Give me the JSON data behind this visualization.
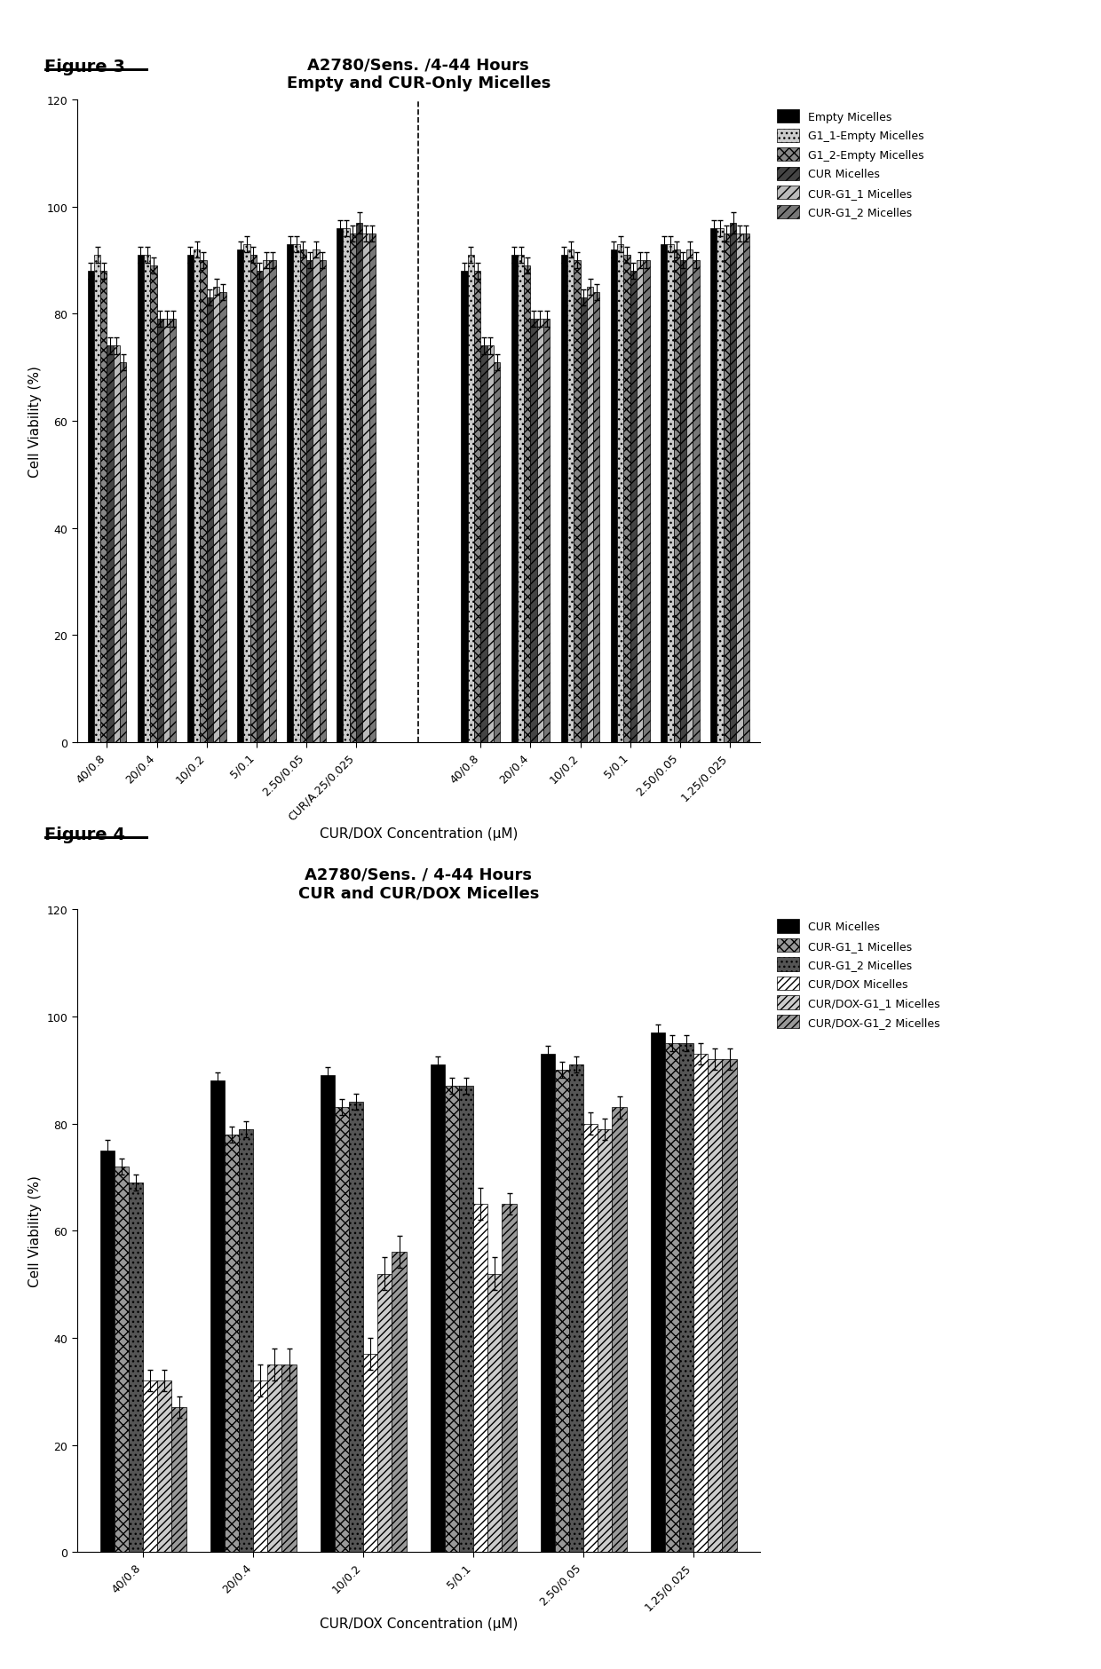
{
  "fig3": {
    "title_line1": "A2780/Sens. /4-44 Hours",
    "title_line2": "Empty and CUR-Only Micelles",
    "xlabel": "CUR/DOX Concentration (μM)",
    "ylabel": "Cell Viability (%)",
    "ylim": [
      0,
      120
    ],
    "yticks": [
      0,
      20,
      40,
      60,
      80,
      100,
      120
    ],
    "xtick_labels_left": [
      "40/0.8",
      "20/0.4",
      "10/0.2",
      "5/0.1",
      "2.50/0.05",
      "CUR/A.25/0.025"
    ],
    "xtick_labels_right": [
      "40/0.8",
      "20/0.4",
      "10/0.2",
      "5/0.1",
      "2.50/0.05",
      "1.25/0.025"
    ],
    "series": {
      "Empty Micelles": [
        88,
        91,
        91,
        92,
        93,
        96
      ],
      "G1_1-Empty Micelles": [
        91,
        91,
        92,
        93,
        93,
        96
      ],
      "G1_2-Empty Micelles": [
        88,
        89,
        90,
        91,
        92,
        95
      ],
      "CUR Micelles": [
        74,
        79,
        83,
        88,
        90,
        97
      ],
      "CUR-G1_1 Micelles": [
        74,
        79,
        85,
        90,
        92,
        95
      ],
      "CUR-G1_2 Micelles": [
        71,
        79,
        84,
        90,
        90,
        95
      ]
    },
    "errors": {
      "Empty Micelles": [
        1.5,
        1.5,
        1.5,
        1.5,
        1.5,
        1.5
      ],
      "G1_1-Empty Micelles": [
        1.5,
        1.5,
        1.5,
        1.5,
        1.5,
        1.5
      ],
      "G1_2-Empty Micelles": [
        1.5,
        1.5,
        1.5,
        1.5,
        1.5,
        1.5
      ],
      "CUR Micelles": [
        1.5,
        1.5,
        1.5,
        1.5,
        1.5,
        2.0
      ],
      "CUR-G1_1 Micelles": [
        1.5,
        1.5,
        1.5,
        1.5,
        1.5,
        1.5
      ],
      "CUR-G1_2 Micelles": [
        1.5,
        1.5,
        1.5,
        1.5,
        1.5,
        1.5
      ]
    },
    "legend": [
      "Empty Micelles",
      "G1_1-Empty Micelles",
      "G1_2-Empty Micelles",
      "CUR Micelles",
      "CUR-G1_1 Micelles",
      "CUR-G1_2 Micelles"
    ]
  },
  "fig4": {
    "title_line1": "A2780/Sens. / 4-44 Hours",
    "title_line2": "CUR and CUR/DOX Micelles",
    "xlabel": "CUR/DOX Concentration (μM)",
    "ylabel": "Cell Viability (%)",
    "ylim": [
      0,
      120
    ],
    "yticks": [
      0,
      20,
      40,
      60,
      80,
      100,
      120
    ],
    "categories": [
      "40/0.8",
      "20/0.4",
      "10/0.2",
      "5/0.1",
      "2.50/0.05",
      "1.25/0.025"
    ],
    "series": {
      "CUR Micelles": [
        75,
        88,
        89,
        91,
        93,
        97
      ],
      "CUR-G1_1 Micelles": [
        72,
        78,
        83,
        87,
        90,
        95
      ],
      "CUR-G1_2 Micelles": [
        69,
        79,
        84,
        87,
        91,
        95
      ],
      "CUR/DOX Micelles": [
        32,
        32,
        37,
        65,
        80,
        93
      ],
      "CUR/DOX-G1_1 Micelles": [
        32,
        35,
        52,
        52,
        79,
        92
      ],
      "CUR/DOX-G1_2 Micelles": [
        27,
        35,
        56,
        65,
        83,
        92
      ]
    },
    "errors": {
      "CUR Micelles": [
        2.0,
        1.5,
        1.5,
        1.5,
        1.5,
        1.5
      ],
      "CUR-G1_1 Micelles": [
        1.5,
        1.5,
        1.5,
        1.5,
        1.5,
        1.5
      ],
      "CUR-G1_2 Micelles": [
        1.5,
        1.5,
        1.5,
        1.5,
        1.5,
        1.5
      ],
      "CUR/DOX Micelles": [
        2.0,
        3.0,
        3.0,
        3.0,
        2.0,
        2.0
      ],
      "CUR/DOX-G1_1 Micelles": [
        2.0,
        3.0,
        3.0,
        3.0,
        2.0,
        2.0
      ],
      "CUR/DOX-G1_2 Micelles": [
        2.0,
        3.0,
        3.0,
        2.0,
        2.0,
        2.0
      ]
    },
    "legend": [
      "CUR Micelles",
      "CUR-G1_1 Micelles",
      "CUR-G1_2 Micelles",
      "CUR/DOX Micelles",
      "CUR/DOX-G1_1 Micelles",
      "CUR/DOX-G1_2 Micelles"
    ]
  },
  "figure_label_fontsize": 14,
  "title_fontsize": 13,
  "axis_label_fontsize": 11,
  "tick_fontsize": 9,
  "legend_fontsize": 9,
  "bar_width": 0.13,
  "background_color": "#ffffff"
}
